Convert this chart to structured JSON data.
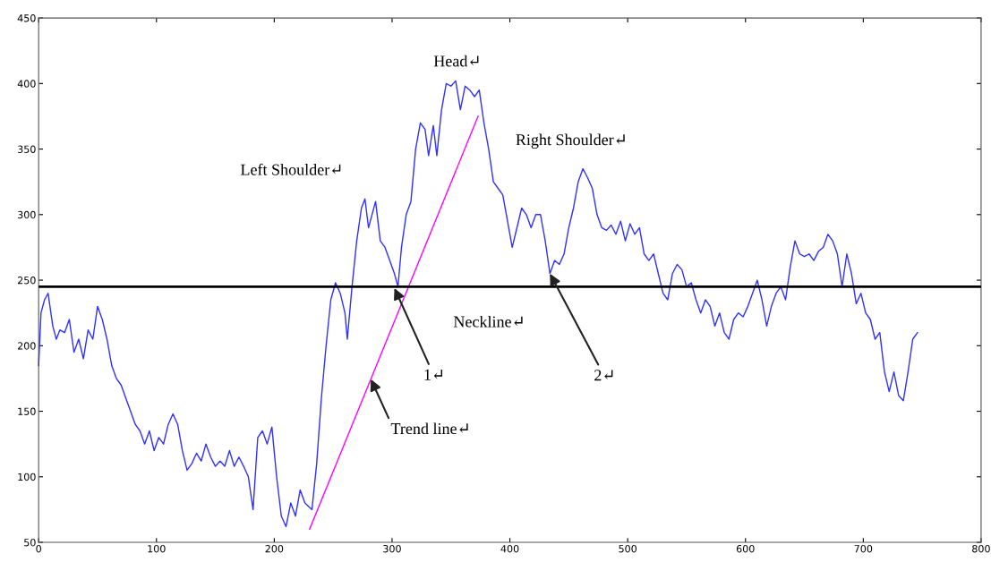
{
  "chart_data": {
    "type": "line",
    "xlim": [
      0,
      800
    ],
    "ylim": [
      50,
      450
    ],
    "xticks": [
      0,
      100,
      200,
      300,
      400,
      500,
      600,
      700,
      800
    ],
    "yticks": [
      50,
      100,
      150,
      200,
      250,
      300,
      350,
      400,
      450
    ],
    "grid": false,
    "legend": false,
    "marker": "none",
    "line_style": "solid",
    "series": [
      {
        "color": "#3030ff",
        "x": [
          0,
          2,
          5,
          8,
          12,
          15,
          18,
          22,
          26,
          30,
          34,
          38,
          42,
          46,
          50,
          54,
          58,
          62,
          66,
          70,
          74,
          78,
          82,
          86,
          90,
          94,
          98,
          102,
          106,
          110,
          114,
          118,
          122,
          126,
          130,
          134,
          138,
          142,
          146,
          150,
          154,
          158,
          162,
          166,
          170,
          174,
          178,
          182,
          186,
          190,
          194,
          198,
          202,
          206,
          210,
          214,
          218,
          222,
          226,
          232,
          236,
          240,
          244,
          248,
          252,
          256,
          260,
          262,
          266,
          270,
          274,
          277,
          280,
          283,
          286,
          290,
          294,
          298,
          302,
          305,
          308,
          312,
          316,
          320,
          324,
          328,
          331,
          335,
          338,
          342,
          346,
          350,
          354,
          358,
          362,
          366,
          370,
          374,
          378,
          382,
          386,
          390,
          394,
          398,
          402,
          406,
          410,
          414,
          418,
          422,
          426,
          430,
          434,
          438,
          442,
          446,
          450,
          454,
          458,
          462,
          466,
          470,
          474,
          478,
          482,
          486,
          490,
          494,
          498,
          502,
          506,
          510,
          514,
          518,
          522,
          526,
          530,
          534,
          538,
          542,
          546,
          550,
          554,
          558,
          562,
          566,
          570,
          574,
          578,
          582,
          586,
          590,
          594,
          598,
          602,
          606,
          610,
          614,
          618,
          622,
          626,
          630,
          634,
          638,
          642,
          646,
          650,
          654,
          658,
          662,
          666,
          670,
          674,
          678,
          682,
          686,
          690,
          694,
          698,
          702,
          706,
          710,
          714,
          718,
          722,
          726,
          730,
          734,
          738,
          742,
          746
        ],
        "values": [
          185,
          225,
          235,
          240,
          215,
          205,
          212,
          210,
          220,
          195,
          205,
          190,
          212,
          205,
          230,
          220,
          205,
          185,
          175,
          170,
          160,
          150,
          140,
          135,
          125,
          135,
          120,
          130,
          125,
          140,
          148,
          140,
          120,
          105,
          110,
          118,
          112,
          125,
          115,
          108,
          112,
          108,
          120,
          108,
          115,
          108,
          100,
          75,
          130,
          135,
          125,
          138,
          100,
          70,
          62,
          80,
          70,
          90,
          80,
          75,
          110,
          160,
          200,
          235,
          248,
          240,
          225,
          205,
          245,
          280,
          305,
          312,
          290,
          300,
          310,
          280,
          275,
          265,
          255,
          245,
          275,
          300,
          310,
          350,
          370,
          365,
          345,
          368,
          345,
          380,
          400,
          398,
          402,
          380,
          398,
          395,
          390,
          395,
          370,
          350,
          325,
          320,
          315,
          295,
          275,
          290,
          305,
          300,
          290,
          300,
          300,
          280,
          255,
          265,
          262,
          270,
          290,
          305,
          325,
          335,
          328,
          320,
          300,
          290,
          288,
          292,
          285,
          295,
          280,
          293,
          285,
          290,
          270,
          265,
          270,
          255,
          240,
          235,
          255,
          262,
          258,
          245,
          248,
          235,
          225,
          235,
          230,
          215,
          225,
          210,
          205,
          220,
          225,
          222,
          230,
          240,
          250,
          235,
          215,
          230,
          240,
          245,
          235,
          260,
          280,
          270,
          268,
          270,
          265,
          272,
          275,
          285,
          280,
          270,
          245,
          270,
          255,
          232,
          240,
          225,
          220,
          205,
          210,
          180,
          165,
          180,
          162,
          158,
          180,
          205,
          210
        ]
      },
      {
        "type": "line",
        "color": "#ff00ff",
        "x": [
          230,
          373
        ],
        "values": [
          60,
          375
        ]
      }
    ],
    "ref_lines": [
      {
        "axis": "y",
        "value": 245,
        "color": "#000000"
      }
    ],
    "annotations": [
      "Head↵",
      "Left Shoulder↵",
      "Right Shoulder↵",
      "Neckline↵",
      {
        "text": "1↵",
        "x": 302,
        "y": 244
      },
      {
        "text": "2↵",
        "x": 434,
        "y": 255
      },
      {
        "text": "Trend line↵",
        "x": 282,
        "y": 174.5
      }
    ]
  }
}
